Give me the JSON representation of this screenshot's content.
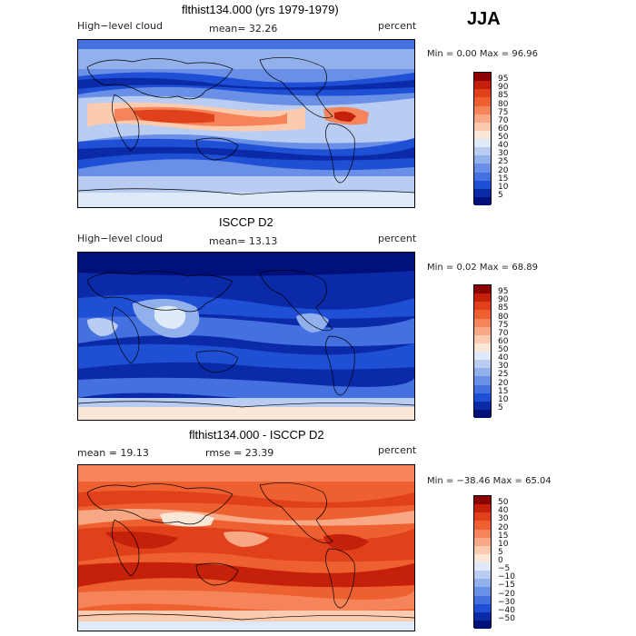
{
  "season": "JJA",
  "panels": [
    {
      "title": "flthist134.000 (yrs 1979-1979)",
      "left_label": "High−level cloud",
      "center_label": "mean=  32.26",
      "right_label": "percent",
      "minmax": "Min =    0.00 Max =   96.96",
      "cbar_labels": [
        "95",
        "90",
        "85",
        "80",
        "75",
        "70",
        "60",
        "50",
        "40",
        "30",
        "25",
        "20",
        "15",
        "10",
        "5"
      ],
      "cbar_colors": [
        "#8b0000",
        "#c4200a",
        "#e0401a",
        "#ef6030",
        "#f5845a",
        "#f8a884",
        "#fbcbb0",
        "#fbe7d8",
        "#dfeaf8",
        "#b9cdf2",
        "#91b0ec",
        "#6a8fe6",
        "#4470e0",
        "#1f4fd4",
        "#0a2aa8",
        "#00107a"
      ],
      "style": "model"
    },
    {
      "title": "ISCCP D2",
      "left_label": "High−level cloud",
      "center_label": "mean=  13.13",
      "right_label": "percent",
      "minmax": "Min =    0.02 Max =   68.89",
      "cbar_labels": [
        "95",
        "90",
        "85",
        "80",
        "75",
        "70",
        "60",
        "50",
        "40",
        "30",
        "25",
        "20",
        "15",
        "10",
        "5"
      ],
      "cbar_colors": [
        "#8b0000",
        "#c4200a",
        "#e0401a",
        "#ef6030",
        "#f5845a",
        "#f8a884",
        "#fbcbb0",
        "#fbe7d8",
        "#dfeaf8",
        "#b9cdf2",
        "#91b0ec",
        "#6a8fe6",
        "#4470e0",
        "#1f4fd4",
        "#0a2aa8",
        "#00107a"
      ],
      "style": "obs"
    },
    {
      "title": "flthist134.000 - ISCCP D2",
      "left_label": "mean =   19.13",
      "center_label": "rmse =   23.39",
      "right_label": "percent",
      "minmax": "Min = −38.46 Max =   65.04",
      "cbar_labels": [
        "50",
        "40",
        "30",
        "20",
        "15",
        "10",
        "5",
        "0",
        "−5",
        "−10",
        "−15",
        "−20",
        "−30",
        "−40",
        "−50"
      ],
      "cbar_colors": [
        "#8b0000",
        "#c4200a",
        "#e0401a",
        "#ef6030",
        "#f5845a",
        "#f8a884",
        "#fbcbb0",
        "#fbe7d8",
        "#dfeaf8",
        "#b9cdf2",
        "#91b0ec",
        "#6a8fe6",
        "#4470e0",
        "#1f4fd4",
        "#0a2aa8",
        "#00107a"
      ],
      "style": "diff"
    }
  ]
}
